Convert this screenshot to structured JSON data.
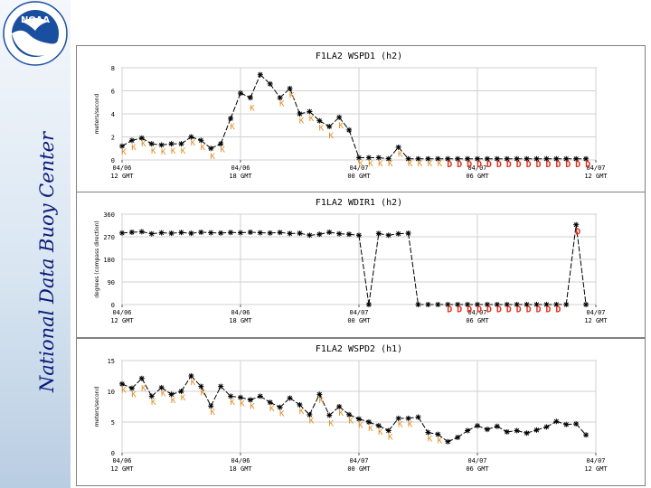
{
  "sidebar": {
    "title": "National Data Buoy Center",
    "logo_text": "NOAA",
    "logo_ring_text": "NATIONAL OCEANIC AND ATMOSPHERIC ADMINISTRATION · U.S. DEPARTMENT OF COMMERCE",
    "colors": {
      "logo_blue": "#1a4fa0",
      "logo_white": "#ffffff",
      "title_color": "#0a1a7a"
    }
  },
  "chart_data": [
    {
      "type": "line",
      "title": "F1LA2 WSPD1 (h2)",
      "ylabel": "meters/second",
      "ylim": [
        0,
        8
      ],
      "yticks": [
        "0",
        "2",
        "4",
        "6",
        "8"
      ],
      "xlim": [
        0,
        48
      ],
      "xticks": [
        {
          "label1": "04/06",
          "label2": "12 GMT"
        },
        {
          "label1": "04/06",
          "label2": "18 GMT"
        },
        {
          "label1": "04/07",
          "label2": "00 GMT"
        },
        {
          "label1": "04/07",
          "label2": "06 GMT"
        },
        {
          "label1": "04/07",
          "label2": "12 GMT"
        }
      ],
      "grid": true,
      "x": [
        0,
        1,
        2,
        3,
        4,
        5,
        6,
        7,
        8,
        9,
        10,
        11,
        12,
        13,
        14,
        15,
        16,
        17,
        18,
        19,
        20,
        21,
        22,
        23,
        24,
        25,
        26,
        27,
        28,
        29,
        30,
        31,
        32,
        33,
        34,
        35,
        36,
        37,
        38,
        39,
        40,
        41,
        42,
        43,
        44,
        45,
        46,
        47
      ],
      "values": [
        1.2,
        1.7,
        1.9,
        1.4,
        1.3,
        1.4,
        1.4,
        2.0,
        1.7,
        1.0,
        1.4,
        3.6,
        5.8,
        5.4,
        7.4,
        6.6,
        5.4,
        6.2,
        4.0,
        4.2,
        3.4,
        2.9,
        3.7,
        2.6,
        0.2,
        0.2,
        0.2,
        0.1,
        1.1,
        0.1,
        0.1,
        0.1,
        0.1,
        0.1,
        0.1,
        0.1,
        0.1,
        0.1,
        0.1,
        0.1,
        0.1,
        0.1,
        0.1,
        0.1,
        0.1,
        0.1,
        0.1,
        0.1
      ],
      "flags": [
        {
          "x": 0,
          "y": 0.7,
          "text": "K"
        },
        {
          "x": 1,
          "y": 1.1,
          "text": "K"
        },
        {
          "x": 2,
          "y": 1.4,
          "text": "K"
        },
        {
          "x": 3,
          "y": 0.8,
          "text": "K"
        },
        {
          "x": 4,
          "y": 0.7,
          "text": "K"
        },
        {
          "x": 5,
          "y": 0.8,
          "text": "K"
        },
        {
          "x": 6,
          "y": 0.8,
          "text": "K"
        },
        {
          "x": 7,
          "y": 1.5,
          "text": "K"
        },
        {
          "x": 8,
          "y": 1.1,
          "text": "K"
        },
        {
          "x": 9,
          "y": 0.3,
          "text": "K"
        },
        {
          "x": 10,
          "y": 0.9,
          "text": "K"
        },
        {
          "x": 11,
          "y": 2.9,
          "text": "K"
        },
        {
          "x": 13,
          "y": 4.5,
          "text": "K"
        },
        {
          "x": 16,
          "y": 4.9,
          "text": "K"
        },
        {
          "x": 17,
          "y": 5.6,
          "text": "K"
        },
        {
          "x": 18,
          "y": 3.4,
          "text": "K"
        },
        {
          "x": 19,
          "y": 3.6,
          "text": "K"
        },
        {
          "x": 20,
          "y": 2.8,
          "text": "K"
        },
        {
          "x": 21,
          "y": 2.1,
          "text": "K"
        },
        {
          "x": 22,
          "y": 3.0,
          "text": "K"
        },
        {
          "x": 24,
          "y": -0.3,
          "text": "K"
        },
        {
          "x": 25,
          "y": -0.3,
          "text": "K"
        },
        {
          "x": 26,
          "y": -0.3,
          "text": "K"
        },
        {
          "x": 27,
          "y": -0.3,
          "text": "K"
        },
        {
          "x": 28,
          "y": 0.5,
          "text": "K"
        },
        {
          "x": 29,
          "y": -0.3,
          "text": "K"
        },
        {
          "x": 30,
          "y": -0.3,
          "text": "K"
        },
        {
          "x": 31,
          "y": -0.3,
          "text": "K"
        },
        {
          "x": 32,
          "y": -0.3,
          "text": "K"
        },
        {
          "x": 33,
          "y": -0.4,
          "text": "D"
        },
        {
          "x": 34,
          "y": -0.4,
          "text": "D"
        },
        {
          "x": 35,
          "y": -0.4,
          "text": "D"
        },
        {
          "x": 36,
          "y": -0.4,
          "text": "D"
        },
        {
          "x": 37,
          "y": -0.4,
          "text": "D"
        },
        {
          "x": 38,
          "y": -0.4,
          "text": "D"
        },
        {
          "x": 39,
          "y": -0.4,
          "text": "D"
        },
        {
          "x": 40,
          "y": -0.4,
          "text": "D"
        },
        {
          "x": 41,
          "y": -0.4,
          "text": "D"
        },
        {
          "x": 42,
          "y": -0.4,
          "text": "D"
        },
        {
          "x": 43,
          "y": -0.4,
          "text": "D"
        },
        {
          "x": 44,
          "y": -0.4,
          "text": "D"
        },
        {
          "x": 45,
          "y": -0.4,
          "text": "D"
        },
        {
          "x": 46,
          "y": -0.4,
          "text": "D"
        },
        {
          "x": 47,
          "y": -0.4,
          "text": "D"
        }
      ]
    },
    {
      "type": "line",
      "title": "F1LA2 WDIR1 (h2)",
      "ylabel": "degrees (compass direction)",
      "ylim": [
        0,
        360
      ],
      "yticks": [
        "0",
        "90",
        "180",
        "270",
        "360"
      ],
      "xlim": [
        0,
        48
      ],
      "xticks": [
        {
          "label1": "04/06",
          "label2": "12 GMT"
        },
        {
          "label1": "04/06",
          "label2": "18 GMT"
        },
        {
          "label1": "04/07",
          "label2": "00 GMT"
        },
        {
          "label1": "04/07",
          "label2": "06 GMT"
        },
        {
          "label1": "04/07",
          "label2": "12 GMT"
        }
      ],
      "grid": true,
      "x": [
        0,
        1,
        2,
        3,
        4,
        5,
        6,
        7,
        8,
        9,
        10,
        11,
        12,
        13,
        14,
        15,
        16,
        17,
        18,
        19,
        20,
        21,
        22,
        23,
        24,
        25,
        26,
        27,
        28,
        29,
        30,
        31,
        32,
        33,
        34,
        35,
        36,
        37,
        38,
        39,
        40,
        41,
        42,
        43,
        44,
        45,
        46,
        47
      ],
      "values": [
        285,
        288,
        290,
        282,
        286,
        284,
        287,
        284,
        288,
        286,
        285,
        287,
        286,
        288,
        286,
        285,
        287,
        283,
        284,
        276,
        280,
        288,
        282,
        280,
        276,
        0,
        283,
        276,
        282,
        284,
        0,
        0,
        0,
        0,
        0,
        0,
        0,
        0,
        0,
        0,
        0,
        0,
        0,
        0,
        0,
        0,
        318,
        0
      ],
      "flags": [
        {
          "x": 33,
          "y": -20,
          "text": "D"
        },
        {
          "x": 34,
          "y": -20,
          "text": "D"
        },
        {
          "x": 35,
          "y": -20,
          "text": "D"
        },
        {
          "x": 36,
          "y": -20,
          "text": "D"
        },
        {
          "x": 37,
          "y": -20,
          "text": "D"
        },
        {
          "x": 38,
          "y": -20,
          "text": "D"
        },
        {
          "x": 39,
          "y": -20,
          "text": "D"
        },
        {
          "x": 40,
          "y": -20,
          "text": "D"
        },
        {
          "x": 41,
          "y": -20,
          "text": "D"
        },
        {
          "x": 42,
          "y": -20,
          "text": "D"
        },
        {
          "x": 43,
          "y": -20,
          "text": "D"
        },
        {
          "x": 44,
          "y": -20,
          "text": "D"
        },
        {
          "x": 46,
          "y": 290,
          "text": "D"
        }
      ]
    },
    {
      "type": "line",
      "title": "F1LA2 WSPD2 (h1)",
      "ylabel": "meters/second",
      "ylim": [
        0,
        15
      ],
      "yticks": [
        "0",
        "5",
        "10",
        "15"
      ],
      "xlim": [
        0,
        48
      ],
      "xticks": [
        {
          "label1": "04/06",
          "label2": "12 GMT"
        },
        {
          "label1": "04/06",
          "label2": "18 GMT"
        },
        {
          "label1": "04/07",
          "label2": "00 GMT"
        },
        {
          "label1": "04/07",
          "label2": "06 GMT"
        },
        {
          "label1": "04/07",
          "label2": "12 GMT"
        }
      ],
      "grid": true,
      "x": [
        0,
        1,
        2,
        3,
        4,
        5,
        6,
        7,
        8,
        9,
        10,
        11,
        12,
        13,
        14,
        15,
        16,
        17,
        18,
        19,
        20,
        21,
        22,
        23,
        24,
        25,
        26,
        27,
        28,
        29,
        30,
        31,
        32,
        33,
        34,
        35,
        36,
        37,
        38,
        39,
        40,
        41,
        42,
        43,
        44,
        45,
        46,
        47
      ],
      "values": [
        11.2,
        10.5,
        12.1,
        9.2,
        10.6,
        9.5,
        10.0,
        12.5,
        10.8,
        7.6,
        10.8,
        9.2,
        9.0,
        8.6,
        9.2,
        8.2,
        7.4,
        8.9,
        7.8,
        6.2,
        9.5,
        6.1,
        7.5,
        6.2,
        5.5,
        5.0,
        4.4,
        3.6,
        5.6,
        5.6,
        5.8,
        3.3,
        3.0,
        1.8,
        2.5,
        3.6,
        4.4,
        3.8,
        4.3,
        3.4,
        3.6,
        3.2,
        3.7,
        4.2,
        5.1,
        4.6,
        4.7,
        2.9
      ],
      "flags": [
        {
          "x": 0,
          "y": 10.2,
          "text": "K"
        },
        {
          "x": 1,
          "y": 9.5,
          "text": "K"
        },
        {
          "x": 2,
          "y": 10.5,
          "text": "K"
        },
        {
          "x": 3,
          "y": 8.2,
          "text": "K"
        },
        {
          "x": 4,
          "y": 9.6,
          "text": "K"
        },
        {
          "x": 5,
          "y": 8.5,
          "text": "K"
        },
        {
          "x": 6,
          "y": 9.0,
          "text": "K"
        },
        {
          "x": 7,
          "y": 11.5,
          "text": "K"
        },
        {
          "x": 8,
          "y": 9.8,
          "text": "K"
        },
        {
          "x": 9,
          "y": 6.6,
          "text": "K"
        },
        {
          "x": 11,
          "y": 8.2,
          "text": "K"
        },
        {
          "x": 12,
          "y": 8.0,
          "text": "K"
        },
        {
          "x": 13,
          "y": 7.6,
          "text": "K"
        },
        {
          "x": 15,
          "y": 7.2,
          "text": "K"
        },
        {
          "x": 16,
          "y": 6.4,
          "text": "K"
        },
        {
          "x": 18,
          "y": 6.8,
          "text": "K"
        },
        {
          "x": 19,
          "y": 5.2,
          "text": "K"
        },
        {
          "x": 20,
          "y": 8.5,
          "text": "K"
        },
        {
          "x": 21,
          "y": 4.8,
          "text": "K"
        },
        {
          "x": 22,
          "y": 6.5,
          "text": "K"
        },
        {
          "x": 23,
          "y": 5.2,
          "text": "K"
        },
        {
          "x": 24,
          "y": 4.5,
          "text": "K"
        },
        {
          "x": 25,
          "y": 4.0,
          "text": "K"
        },
        {
          "x": 26,
          "y": 3.4,
          "text": "K"
        },
        {
          "x": 27,
          "y": 2.6,
          "text": "K"
        },
        {
          "x": 28,
          "y": 4.6,
          "text": "K"
        },
        {
          "x": 29,
          "y": 4.6,
          "text": "K"
        },
        {
          "x": 31,
          "y": 2.3,
          "text": "K"
        },
        {
          "x": 32,
          "y": 2.0,
          "text": "K"
        }
      ]
    }
  ]
}
